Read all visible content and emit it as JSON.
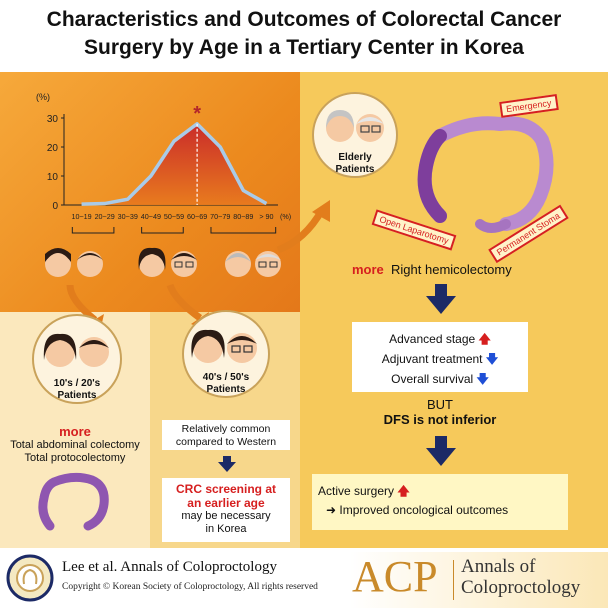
{
  "title": {
    "line1": "Characteristics and Outcomes of Colorectal Cancer",
    "line2": "Surgery by Age in a Tertiary Center in Korea"
  },
  "chart_data": {
    "type": "line",
    "ylabel": "(%)",
    "x_unit": "(%)",
    "categories": [
      "10~19",
      "20~29",
      "30~39",
      "40~49",
      "50~59",
      "60~69",
      "70~79",
      "80~89",
      "> 90"
    ],
    "values": [
      0.3,
      0.5,
      2,
      10,
      22,
      28,
      20,
      5,
      0.5
    ],
    "ylim": [
      0,
      30
    ],
    "y_ticks": [
      "0",
      "10",
      "20",
      "30"
    ],
    "peak_marker": "*",
    "line_color": "#a9cbe8"
  },
  "elderly": {
    "label_line1": "Elderly",
    "label_line2": "Patients",
    "stamps": {
      "emergency": "Emergency",
      "laparotomy": "Open Laparotomy",
      "stoma": "Permanent Stoma"
    },
    "more_word": "more",
    "more_text": "Right hemicolectomy",
    "outcomes": [
      {
        "text": "Advanced stage",
        "arrow": "up"
      },
      {
        "text": "Adjuvant treatment",
        "arrow": "down"
      },
      {
        "text": "Overall survival",
        "arrow": "down"
      }
    ],
    "but": "BUT",
    "dfs": "DFS is not inferior",
    "active": "Active surgery",
    "improved": "Improved oncological outcomes"
  },
  "young": {
    "label_line1": "10's / 20's",
    "label_line2": "Patients",
    "more_word": "more",
    "line1": "Total abdominal colectomy",
    "line2": "Total protocolectomy"
  },
  "middle": {
    "label_line1": "40's / 50's",
    "label_line2": "Patients",
    "common1": "Relatively common",
    "common2": "compared to Western",
    "screen1": "CRC screening at",
    "screen2": "an earlier age",
    "screen3": "may be necessary",
    "screen4": "in Korea"
  },
  "footer": {
    "citation": "Lee et al. Annals of Coloproctology",
    "copyright": "Copyright © Korean Society of Coloproctology, All rights reserved",
    "acp": "ACP",
    "journal1": "Annals of",
    "journal2": "Coloproctology"
  },
  "colors": {
    "up_arrow": "#d61f1f",
    "down_arrow": "#1f4fd6",
    "navy_arrow": "#1c2a66",
    "accent_orange": "#e27d1c"
  }
}
